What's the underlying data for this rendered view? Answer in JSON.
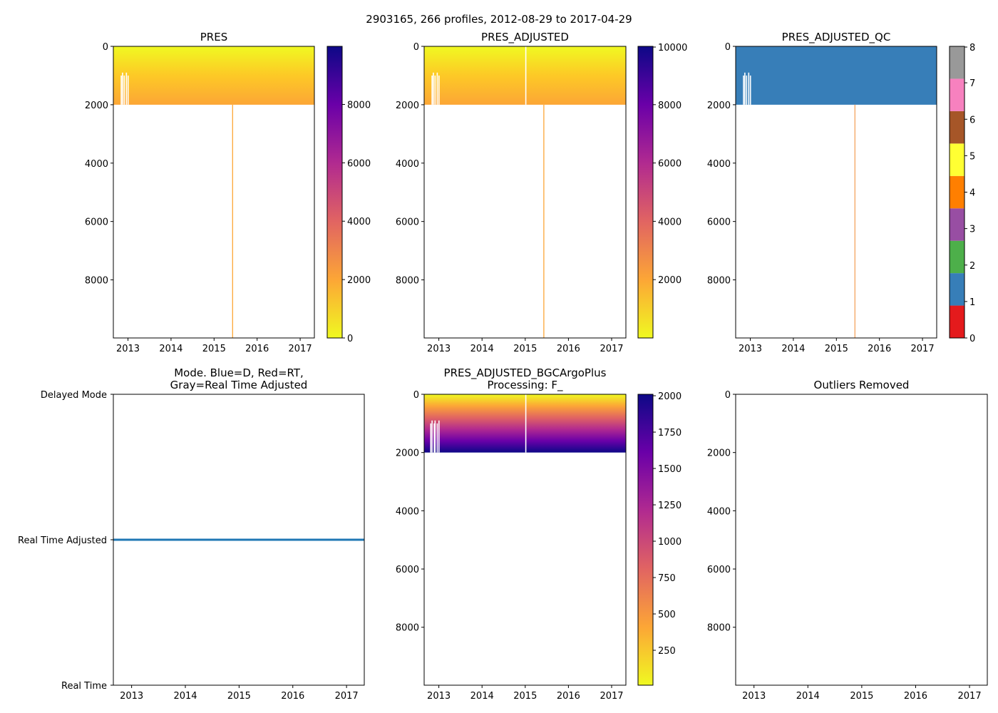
{
  "chart_data": {
    "suptitle": "2903165, 266 profiles, 2012-08-29 to 2017-04-29",
    "time_range": [
      2012.66,
      2017.33
    ],
    "year_ticks": [
      "2013",
      "2014",
      "2015",
      "2016",
      "2017"
    ],
    "panels": [
      {
        "id": "pres",
        "type": "heatmap",
        "title": [
          "PRES"
        ],
        "ylim": [
          9990,
          0
        ],
        "yticks": [
          "0",
          "2000",
          "4000",
          "6000",
          "8000"
        ],
        "colormap": "plasma_r",
        "cbar_range": [
          0,
          9990
        ],
        "cbar_ticks": [
          "0",
          "2000",
          "4000",
          "6000",
          "8000"
        ],
        "data_max_pressure": 2000,
        "deep_profile_time": 2015.42,
        "deep_profile_max": 9990,
        "gap_profiles": [
          2012.83,
          2012.86,
          2012.9,
          2012.95,
          2012.99
        ]
      },
      {
        "id": "pres-adjusted",
        "type": "heatmap",
        "title": [
          "PRES_ADJUSTED"
        ],
        "ylim": [
          9990,
          0
        ],
        "yticks": [
          "0",
          "2000",
          "4000",
          "6000",
          "8000"
        ],
        "colormap": "plasma_r",
        "cbar_range": [
          0,
          10000
        ],
        "cbar_ticks": [
          "2000",
          "4000",
          "6000",
          "8000",
          "10000"
        ],
        "data_max_pressure": 2000,
        "deep_profile_time": 2015.42,
        "deep_profile_max": 9990,
        "missing_profile_time": 2015.0,
        "gap_profiles": [
          2012.83,
          2012.86,
          2012.9,
          2012.95,
          2012.99
        ]
      },
      {
        "id": "pres-adjusted-qc",
        "type": "heatmap",
        "title": [
          "PRES_ADJUSTED_QC"
        ],
        "ylim": [
          9990,
          0
        ],
        "yticks": [
          "0",
          "2000",
          "4000",
          "6000",
          "8000"
        ],
        "colormap": "discrete",
        "cbar_range": [
          0,
          8
        ],
        "cbar_ticks": [
          "0",
          "1",
          "2",
          "3",
          "4",
          "5",
          "6",
          "7",
          "8"
        ],
        "qc_colors": [
          "#e41a1c",
          "#377eb8",
          "#4daf4a",
          "#984ea3",
          "#ff7f00",
          "#ffff33",
          "#a65628",
          "#f781bf",
          "#999999"
        ],
        "data_max_pressure": 2000,
        "deep_profile_time": 2015.42,
        "deep_profile_max": 9990,
        "gap_profiles": [
          2012.83,
          2012.86,
          2012.9,
          2012.95,
          2012.99
        ]
      },
      {
        "id": "mode",
        "type": "line",
        "title": [
          "Mode. Blue=D, Red=RT,",
          "Gray=Real Time Adjusted"
        ],
        "ytick_labels": [
          "Delayed Mode",
          "Real Time Adjusted",
          "Real Time"
        ],
        "value": "Real Time Adjusted",
        "line_color": "#1f77b4"
      },
      {
        "id": "bgc",
        "type": "heatmap",
        "title": [
          "PRES_ADJUSTED_BGCArgoPlus",
          "Processing: F_"
        ],
        "ylim": [
          9990,
          0
        ],
        "yticks": [
          "0",
          "2000",
          "4000",
          "6000",
          "8000"
        ],
        "colormap": "plasma_r",
        "cbar_range": [
          10,
          2010
        ],
        "cbar_ticks": [
          "250",
          "500",
          "750",
          "1000",
          "1250",
          "1500",
          "1750",
          "2000"
        ],
        "data_max_pressure": 2000,
        "missing_profile_time": 2015.0,
        "gap_profiles": [
          2012.8,
          2012.83,
          2012.88,
          2012.9,
          2012.95,
          2012.99
        ]
      },
      {
        "id": "outliers",
        "type": "scatter",
        "title": [
          "Outliers Removed"
        ],
        "ylim": [
          9990,
          0
        ],
        "yticks": [
          "0",
          "2000",
          "4000",
          "6000",
          "8000"
        ],
        "points": []
      }
    ]
  }
}
